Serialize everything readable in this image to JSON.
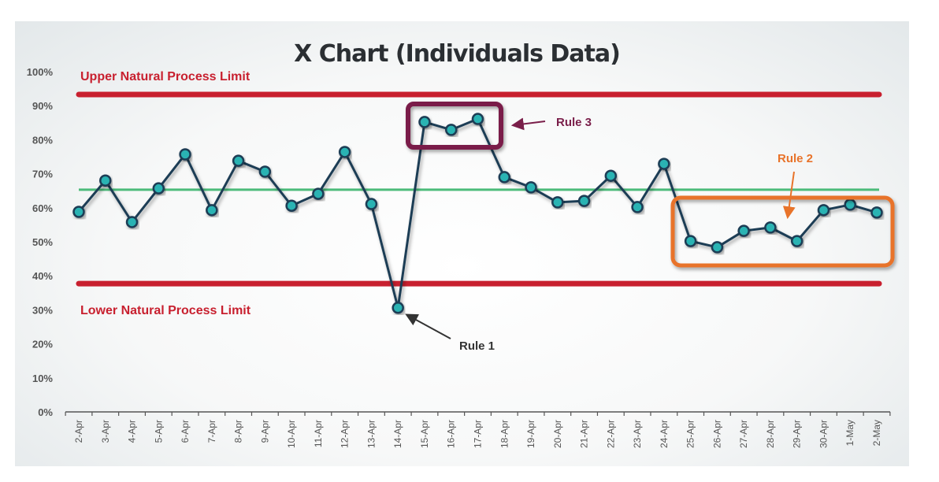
{
  "chart_data": {
    "type": "line",
    "title": "X Chart (Individuals Data)",
    "xlabel": "",
    "ylabel": "",
    "ylim": [
      0,
      100
    ],
    "yticks": [
      "0%",
      "10%",
      "20%",
      "30%",
      "40%",
      "50%",
      "60%",
      "70%",
      "80%",
      "90%",
      "100%"
    ],
    "categories": [
      "2-Apr",
      "3-Apr",
      "4-Apr",
      "5-Apr",
      "6-Apr",
      "7-Apr",
      "8-Apr",
      "9-Apr",
      "10-Apr",
      "11-Apr",
      "12-Apr",
      "13-Apr",
      "14-Apr",
      "15-Apr",
      "16-Apr",
      "17-Apr",
      "18-Apr",
      "19-Apr",
      "20-Apr",
      "21-Apr",
      "22-Apr",
      "23-Apr",
      "24-Apr",
      "25-Apr",
      "26-Apr",
      "27-Apr",
      "28-Apr",
      "29-Apr",
      "30-Apr",
      "1-May",
      "2-May"
    ],
    "series": [
      {
        "name": "Individuals",
        "values": [
          58.8,
          68,
          55.8,
          65.7,
          75.7,
          59.3,
          73.8,
          70.6,
          60.6,
          64.1,
          76.4,
          61.1,
          30.6,
          85.2,
          82.9,
          86.1,
          69,
          66,
          61.6,
          62,
          69.4,
          60.2,
          72.9,
          50.2,
          48.4,
          53.2,
          54.2,
          50.2,
          59.3,
          60.9,
          58.6
        ],
        "color": "#1f3d55",
        "marker_color": "#2bb3b3"
      }
    ],
    "limits": {
      "upper": {
        "label": "Upper Natural Process Limit",
        "value": 93.3,
        "color": "#c8202f"
      },
      "lower": {
        "label": "Lower Natural Process Limit",
        "value": 37.7,
        "color": "#c8202f"
      },
      "center": {
        "value": 65.3,
        "color": "#4cbb7a"
      }
    },
    "annotations": [
      {
        "label": "Rule 1",
        "color": "#333333",
        "points": [
          "14-Apr"
        ]
      },
      {
        "label": "Rule 2",
        "color": "#e8732a",
        "points": [
          "25-Apr",
          "2-May"
        ]
      },
      {
        "label": "Rule 3",
        "color": "#7a1f4a",
        "points": [
          "15-Apr",
          "17-Apr"
        ]
      }
    ],
    "grid": false,
    "legend": "none"
  }
}
